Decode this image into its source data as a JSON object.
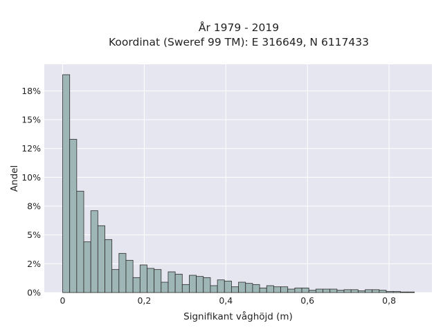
{
  "chart_data": {
    "type": "bar",
    "title": "År 1979 - 2019",
    "subtitle": "Koordinat (Sweref 99 TM): E 316649, N 6117433",
    "xlabel": "Signifikant våghöjd (m)",
    "ylabel": "Andel",
    "xlim": [
      -0.045,
      0.905
    ],
    "ylim": [
      0,
      0.198
    ],
    "xticks": [
      0,
      0.2,
      0.4,
      0.6,
      0.8
    ],
    "xtick_labels": [
      "0",
      "0,2",
      "0,4",
      "0,6",
      "0,8"
    ],
    "yticks": [
      0,
      0.025,
      0.05,
      0.075,
      0.1,
      0.125,
      0.15,
      0.175
    ],
    "ytick_labels": [
      "0%",
      "2%",
      "5%",
      "8%",
      "10%",
      "12%",
      "15%",
      "18%"
    ],
    "grid": true,
    "bin_width": 0.01724,
    "bin_start": 0,
    "values": [
      0.189,
      0.133,
      0.088,
      0.044,
      0.071,
      0.058,
      0.046,
      0.02,
      0.034,
      0.028,
      0.013,
      0.024,
      0.021,
      0.02,
      0.009,
      0.018,
      0.016,
      0.007,
      0.015,
      0.014,
      0.013,
      0.006,
      0.011,
      0.01,
      0.005,
      0.009,
      0.008,
      0.007,
      0.004,
      0.006,
      0.005,
      0.005,
      0.003,
      0.004,
      0.004,
      0.002,
      0.003,
      0.003,
      0.003,
      0.002,
      0.0025,
      0.0025,
      0.0015,
      0.0025,
      0.0025,
      0.002,
      0.001,
      0.001,
      0.0005,
      0.0005
    ],
    "colors": {
      "bar_fill": "#9fb6b6",
      "bar_stroke": "#2b2b2b",
      "plot_bg": "#e6e6f0",
      "grid": "#ffffff"
    }
  }
}
